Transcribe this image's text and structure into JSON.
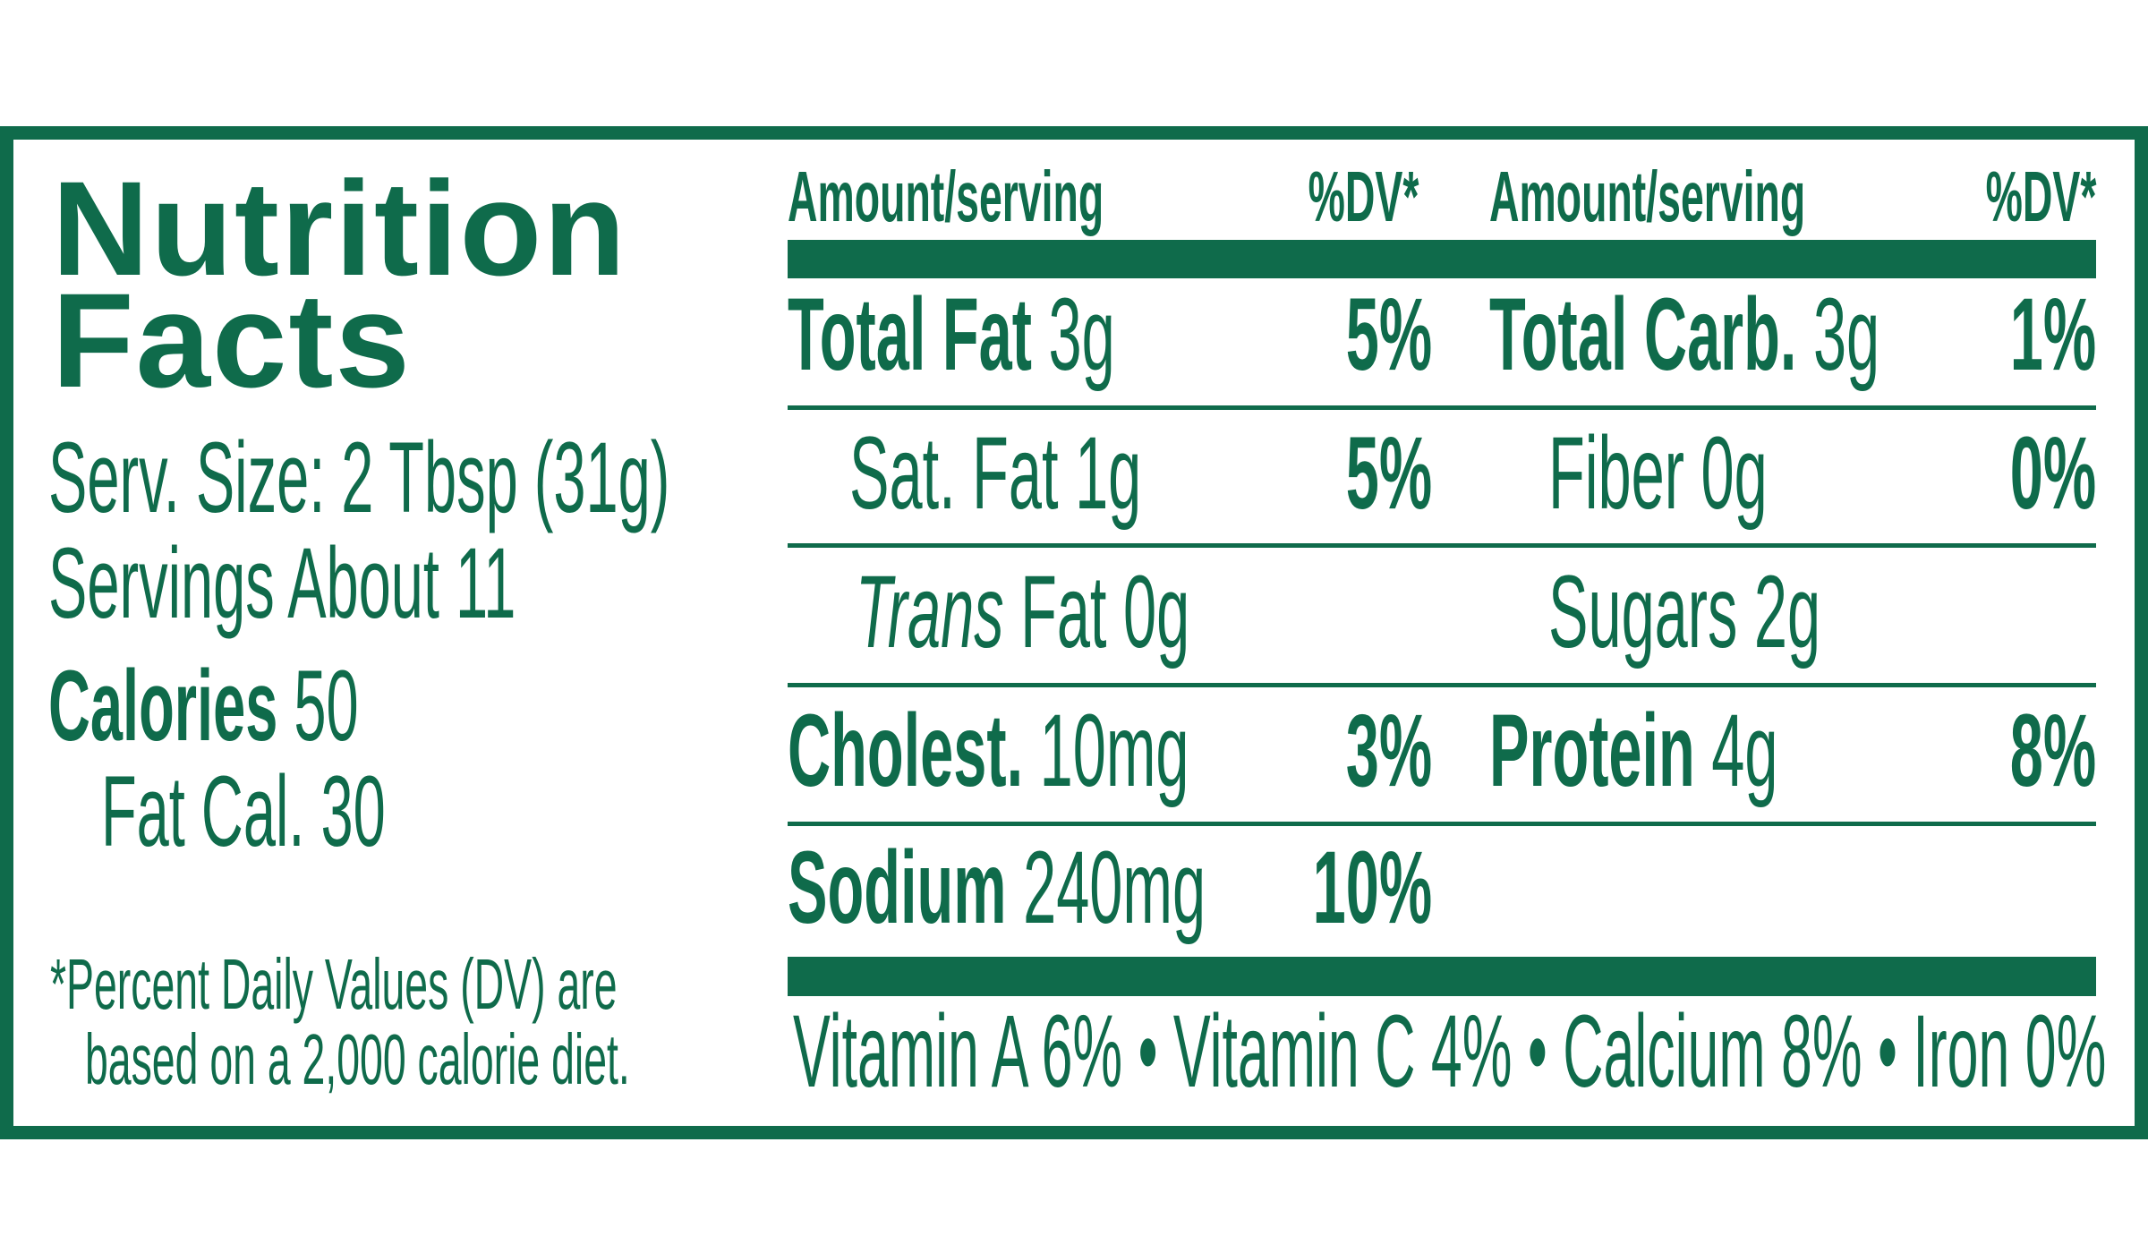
{
  "colors": {
    "brand": "#0f6b4b"
  },
  "title": {
    "line1": "Nutrition",
    "line2": "Facts"
  },
  "serving": {
    "size": "Serv. Size: 2 Tbsp (31g)",
    "servings": "Servings About 11",
    "calories_label": "Calories",
    "calories_value": "50",
    "fat_cal": "Fat Cal. 30"
  },
  "footnote": {
    "line1": "*Percent Daily Values (DV) are",
    "line2": "based on a 2,000 calorie diet."
  },
  "header": {
    "amount_left": "Amount/serving",
    "dv_left": "%DV*",
    "amount_right": "Amount/serving",
    "dv_right": "%DV*"
  },
  "rows": [
    {
      "left": {
        "name": "Total Fat",
        "amount": "3g",
        "dv": "5%"
      },
      "right": {
        "name": "Total Carb.",
        "amount": "3g",
        "dv": "1%"
      }
    },
    {
      "left": {
        "name": "Sat. Fat 1g",
        "dv": "5%"
      },
      "right": {
        "name": "Fiber 0g",
        "dv": "0%"
      }
    },
    {
      "left": {
        "name_italic": "Trans",
        "name": "Fat 0g"
      },
      "right": {
        "name": "Sugars 2g"
      }
    },
    {
      "left": {
        "name": "Cholest.",
        "amount": "10mg",
        "dv": "3%"
      },
      "right": {
        "name": "Protein",
        "amount": "4g",
        "dv": "8%"
      }
    },
    {
      "left": {
        "name": "Sodium",
        "amount": "240mg",
        "dv": "10%"
      }
    }
  ],
  "vitamins": "Vitamin A 6% • Vitamin C 4% • Calcium 8% • Iron 0%"
}
